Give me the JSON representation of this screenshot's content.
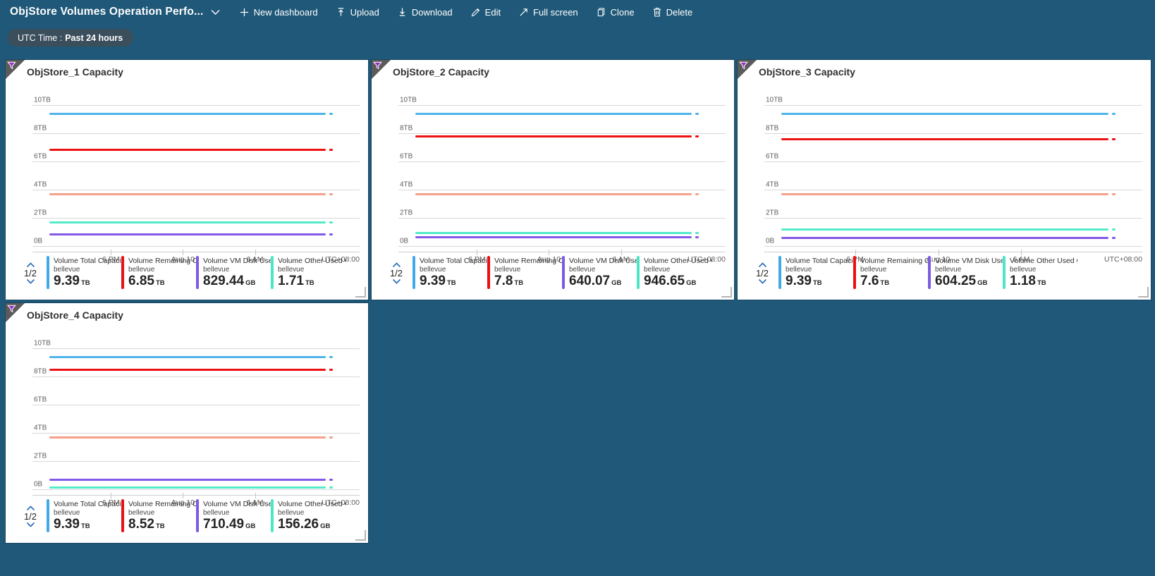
{
  "toolbar": {
    "title": "ObjStore Volumes Operation Perfo...",
    "buttons": [
      {
        "label": "New dashboard",
        "icon": "plus-icon"
      },
      {
        "label": "Upload",
        "icon": "upload-icon"
      },
      {
        "label": "Download",
        "icon": "download-icon"
      },
      {
        "label": "Edit",
        "icon": "edit-icon"
      },
      {
        "label": "Full screen",
        "icon": "fullscreen-icon"
      },
      {
        "label": "Clone",
        "icon": "clone-icon"
      },
      {
        "label": "Delete",
        "icon": "delete-icon"
      }
    ]
  },
  "filter_pill": {
    "prefix": "UTC Time :",
    "value": "Past 24 hours"
  },
  "colors": {
    "page_bg": "#1F5878",
    "pill_bg": "#3A4E5C",
    "tile_bg": "#FFFFFF",
    "series_blue": "#4FB4EA",
    "series_red": "#EE1113",
    "series_orange": "#F5A087",
    "series_teal": "#54EBCB",
    "series_purple": "#8458E8",
    "pager_chevron": "#2F6FBA",
    "corner_funnel": "#9730C6"
  },
  "axis": {
    "y_labels": [
      "10TB",
      "8TB",
      "6TB",
      "4TB",
      "2TB",
      "0B"
    ],
    "x_labels": [
      "6 PM",
      "Aug 10",
      "6 AM"
    ],
    "x_positions_pct": [
      24,
      46,
      68
    ],
    "tz": "UTC+08:00"
  },
  "tiles": [
    {
      "title": "ObjStore_1 Capacity",
      "legend_page": "1/2",
      "legend": [
        {
          "label": "Volume Total Capacit...",
          "sub": "bellevue",
          "value": "9.39",
          "unit": "TB",
          "color": "#41A9E8"
        },
        {
          "label": "Volume Remaining Cap...",
          "sub": "bellevue",
          "value": "6.85",
          "unit": "TB",
          "color": "#EB0F14"
        },
        {
          "label": "Volume VM Disk Used ...",
          "sub": "bellevue",
          "value": "829.44",
          "unit": "GB",
          "color": "#7C5BE0"
        },
        {
          "label": "Volume Other Used Ca...",
          "sub": "bellevue",
          "value": "1.71",
          "unit": "TB",
          "color": "#4AE6C6"
        }
      ]
    },
    {
      "title": "ObjStore_2 Capacity",
      "legend_page": "1/2",
      "legend": [
        {
          "label": "Volume Total Capacit...",
          "sub": "bellevue",
          "value": "9.39",
          "unit": "TB",
          "color": "#41A9E8"
        },
        {
          "label": "Volume Remaining Cap...",
          "sub": "bellevue",
          "value": "7.8",
          "unit": "TB",
          "color": "#EB0F14"
        },
        {
          "label": "Volume VM Disk Used ...",
          "sub": "bellevue",
          "value": "640.07",
          "unit": "GB",
          "color": "#7C5BE0"
        },
        {
          "label": "Volume Other Used Ca...",
          "sub": "bellevue",
          "value": "946.65",
          "unit": "GB",
          "color": "#4AE6C6"
        }
      ]
    },
    {
      "title": "ObjStore_3 Capacity",
      "legend_page": "1/2",
      "legend": [
        {
          "label": "Volume Total Capacit...",
          "sub": "bellevue",
          "value": "9.39",
          "unit": "TB",
          "color": "#41A9E8"
        },
        {
          "label": "Volume Remaining Cap...",
          "sub": "bellevue",
          "value": "7.6",
          "unit": "TB",
          "color": "#EB0F14"
        },
        {
          "label": "Volume VM Disk Used ...",
          "sub": "bellevue",
          "value": "604.25",
          "unit": "GB",
          "color": "#7C5BE0"
        },
        {
          "label": "Volume Other Used Ca...",
          "sub": "bellevue",
          "value": "1.18",
          "unit": "TB",
          "color": "#4AE6C6"
        }
      ]
    },
    {
      "title": "ObjStore_4 Capacity",
      "legend_page": "1/2",
      "legend": [
        {
          "label": "Volume Total Capacit...",
          "sub": "bellevue",
          "value": "9.39",
          "unit": "TB",
          "color": "#41A9E8"
        },
        {
          "label": "Volume Remaining Cap...",
          "sub": "bellevue",
          "value": "8.52",
          "unit": "TB",
          "color": "#EB0F14"
        },
        {
          "label": "Volume VM Disk Used ...",
          "sub": "bellevue",
          "value": "710.49",
          "unit": "GB",
          "color": "#7C5BE0"
        },
        {
          "label": "Volume Other Used Ca...",
          "sub": "bellevue",
          "value": "156.26",
          "unit": "GB",
          "color": "#4AE6C6"
        }
      ]
    }
  ],
  "chart_data": [
    {
      "type": "line",
      "title": "ObjStore_1 Capacity",
      "ylim_tb": [
        0,
        10
      ],
      "y_tick_labels": [
        "10TB",
        "8TB",
        "6TB",
        "4TB",
        "2TB",
        "0B"
      ],
      "x_tick_labels": [
        "6 PM",
        "Aug 10",
        "6 AM"
      ],
      "timezone": "UTC+08:00",
      "grid": true,
      "series": [
        {
          "key": "total",
          "name": "Volume Total Capacity",
          "color": "#4FB4EA",
          "value_tb": 9.39
        },
        {
          "key": "remaining",
          "name": "Volume Remaining Capacity",
          "color": "#EE1113",
          "value_tb": 6.85
        },
        {
          "key": "orange-unlabeled",
          "name": "unlabeled series (legend page 2)",
          "color": "#F5A087",
          "value_tb": 3.7
        },
        {
          "key": "other-used",
          "name": "Volume Other Used Capacity",
          "color": "#54EBCB",
          "value_tb": 1.71
        },
        {
          "key": "vm-disk-used",
          "name": "Volume VM Disk Used",
          "color": "#8458E8",
          "value_tb": 0.83
        }
      ]
    },
    {
      "type": "line",
      "title": "ObjStore_2 Capacity",
      "ylim_tb": [
        0,
        10
      ],
      "y_tick_labels": [
        "10TB",
        "8TB",
        "6TB",
        "4TB",
        "2TB",
        "0B"
      ],
      "x_tick_labels": [
        "6 PM",
        "Aug 10",
        "6 AM"
      ],
      "timezone": "UTC+08:00",
      "grid": true,
      "series": [
        {
          "key": "total",
          "name": "Volume Total Capacity",
          "color": "#4FB4EA",
          "value_tb": 9.39
        },
        {
          "key": "remaining",
          "name": "Volume Remaining Capacity",
          "color": "#EE1113",
          "value_tb": 7.8
        },
        {
          "key": "orange-unlabeled",
          "name": "unlabeled series (legend page 2)",
          "color": "#F5A087",
          "value_tb": 3.7
        },
        {
          "key": "other-used",
          "name": "Volume Other Used Capacity",
          "color": "#54EBCB",
          "value_tb": 0.95
        },
        {
          "key": "vm-disk-used",
          "name": "Volume VM Disk Used",
          "color": "#8458E8",
          "value_tb": 0.64
        }
      ]
    },
    {
      "type": "line",
      "title": "ObjStore_3 Capacity",
      "ylim_tb": [
        0,
        10
      ],
      "y_tick_labels": [
        "10TB",
        "8TB",
        "6TB",
        "4TB",
        "2TB",
        "0B"
      ],
      "x_tick_labels": [
        "6 PM",
        "Aug 10",
        "6 AM"
      ],
      "timezone": "UTC+08:00",
      "grid": true,
      "series": [
        {
          "key": "total",
          "name": "Volume Total Capacity",
          "color": "#4FB4EA",
          "value_tb": 9.39
        },
        {
          "key": "remaining",
          "name": "Volume Remaining Capacity",
          "color": "#EE1113",
          "value_tb": 7.6
        },
        {
          "key": "orange-unlabeled",
          "name": "unlabeled series (legend page 2)",
          "color": "#F5A087",
          "value_tb": 3.7
        },
        {
          "key": "other-used",
          "name": "Volume Other Used Capacity",
          "color": "#54EBCB",
          "value_tb": 1.18
        },
        {
          "key": "vm-disk-used",
          "name": "Volume VM Disk Used",
          "color": "#8458E8",
          "value_tb": 0.6
        }
      ]
    },
    {
      "type": "line",
      "title": "ObjStore_4 Capacity",
      "ylim_tb": [
        0,
        10
      ],
      "y_tick_labels": [
        "10TB",
        "8TB",
        "6TB",
        "4TB",
        "2TB",
        "0B"
      ],
      "x_tick_labels": [
        "6 PM",
        "Aug 10",
        "6 AM"
      ],
      "timezone": "UTC+08:00",
      "grid": true,
      "series": [
        {
          "key": "total",
          "name": "Volume Total Capacity",
          "color": "#4FB4EA",
          "value_tb": 9.39
        },
        {
          "key": "remaining",
          "name": "Volume Remaining Capacity",
          "color": "#EE1113",
          "value_tb": 8.52
        },
        {
          "key": "orange-unlabeled",
          "name": "unlabeled series (legend page 2)",
          "color": "#F5A087",
          "value_tb": 3.7
        },
        {
          "key": "vm-disk-used",
          "name": "Volume VM Disk Used",
          "color": "#8458E8",
          "value_tb": 0.71
        },
        {
          "key": "other-used",
          "name": "Volume Other Used Capacity",
          "color": "#54EBCB",
          "value_tb": 0.156
        }
      ]
    }
  ]
}
